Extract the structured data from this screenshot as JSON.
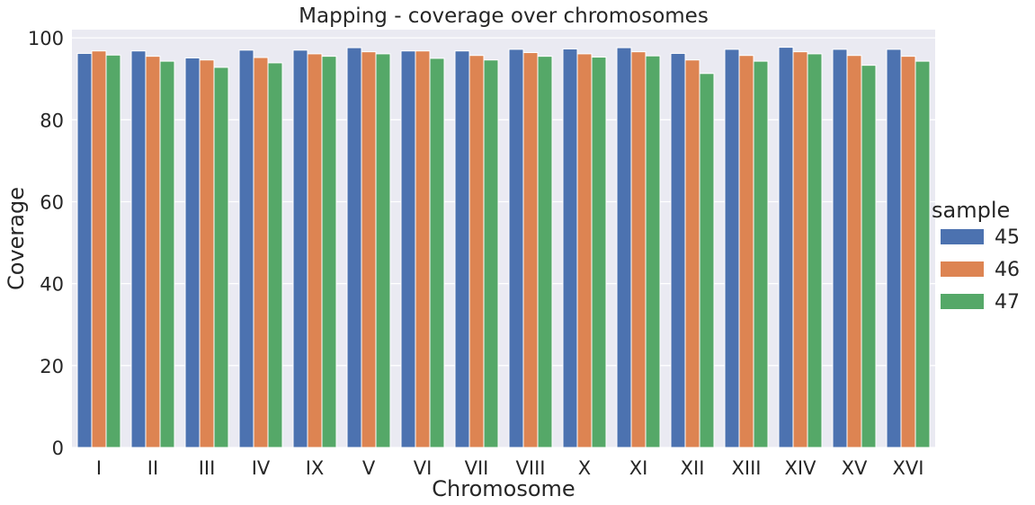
{
  "chart_data": {
    "type": "bar",
    "title": "Mapping - coverage over chromosomes",
    "xlabel": "Chromosome",
    "ylabel": "Coverage",
    "ylim": [
      0,
      102
    ],
    "yticks": [
      0,
      20,
      40,
      60,
      80,
      100
    ],
    "grid": true,
    "legend_title": "sample",
    "legend_position": "right",
    "categories": [
      "I",
      "II",
      "III",
      "IV",
      "IX",
      "V",
      "VI",
      "VII",
      "VIII",
      "X",
      "XI",
      "XII",
      "XIII",
      "XIV",
      "XV",
      "XVI"
    ],
    "series": [
      {
        "name": "45",
        "color": "#4c72b0",
        "values": [
          96.2,
          96.8,
          95.1,
          97.0,
          97.0,
          97.6,
          96.8,
          96.8,
          97.2,
          97.3,
          97.6,
          96.2,
          97.2,
          97.7,
          97.2,
          97.2
        ]
      },
      {
        "name": "46",
        "color": "#dd8452",
        "values": [
          96.8,
          95.5,
          94.6,
          95.2,
          96.1,
          96.6,
          96.8,
          95.7,
          96.4,
          96.1,
          96.6,
          94.6,
          95.7,
          96.6,
          95.7,
          95.5
        ]
      },
      {
        "name": "47",
        "color": "#55a868",
        "values": [
          95.8,
          94.3,
          92.8,
          93.9,
          95.5,
          96.1,
          95.0,
          94.6,
          95.5,
          95.3,
          95.6,
          91.3,
          94.3,
          96.1,
          93.3,
          94.3
        ]
      }
    ]
  },
  "colors": {
    "plot_background": "#eaeaf2",
    "grid": "#ffffff",
    "text": "#262626"
  }
}
